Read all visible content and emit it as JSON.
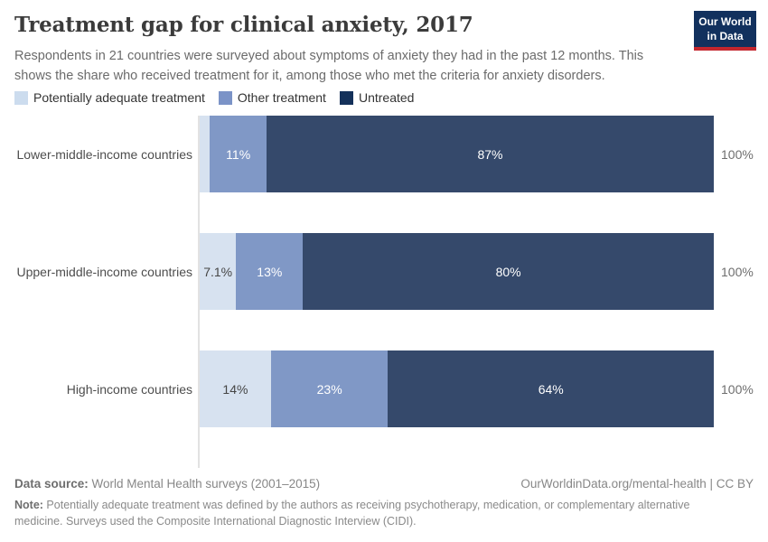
{
  "header": {
    "title": "Treatment gap for clinical anxiety, 2017",
    "subtitle": "Respondents in 21 countries were surveyed about symptoms of anxiety they had in the past 12 months. This shows the share who received treatment for it, among those who met the criteria for anxiety disorders.",
    "logo": {
      "line1": "Our World",
      "line2": "in Data"
    }
  },
  "legend": {
    "items": [
      {
        "label": "Potentially adequate treatment",
        "color": "#ccdcee"
      },
      {
        "label": "Other treatment",
        "color": "#7b93c7"
      },
      {
        "label": "Untreated",
        "color": "#14315a"
      }
    ]
  },
  "chart_data": {
    "type": "bar",
    "stacked": true,
    "orientation": "horizontal",
    "title": "Treatment gap for clinical anxiety, 2017",
    "categories": [
      "Lower-middle-income countries",
      "Upper-middle-income countries",
      "High-income countries"
    ],
    "series": [
      {
        "name": "Potentially adequate treatment",
        "color": "#d7e2f0",
        "values": [
          2,
          7.1,
          14
        ],
        "labels": [
          "",
          "7.1%",
          "14%"
        ],
        "label_color": "#454545"
      },
      {
        "name": "Other treatment",
        "color": "#8098c6",
        "values": [
          11,
          13,
          23
        ],
        "labels": [
          "11%",
          "13%",
          "23%"
        ],
        "label_color": "#ffffff"
      },
      {
        "name": "Untreated",
        "color": "#35496b",
        "values": [
          87,
          80,
          64
        ],
        "labels": [
          "87%",
          "80%",
          "64%"
        ],
        "label_color": "#ffffff"
      }
    ],
    "totals": [
      "100%",
      "100%",
      "100%"
    ],
    "xlim": [
      0,
      100
    ],
    "xlabel": "",
    "ylabel": "",
    "legend_position": "top",
    "grid": false,
    "axis_line_color": "#e2e2e2"
  },
  "footer": {
    "datasource_label": "Data source:",
    "datasource_text": " World Mental Health surveys (2001–2015)",
    "link_text": "OurWorldinData.org/mental-health | CC BY",
    "note_label": "Note:",
    "note_text": " Potentially adequate treatment was defined by the authors as receiving psychotherapy, medication, or complementary alternative medicine. Surveys used the Composite International Diagnostic Interview (CIDI)."
  }
}
